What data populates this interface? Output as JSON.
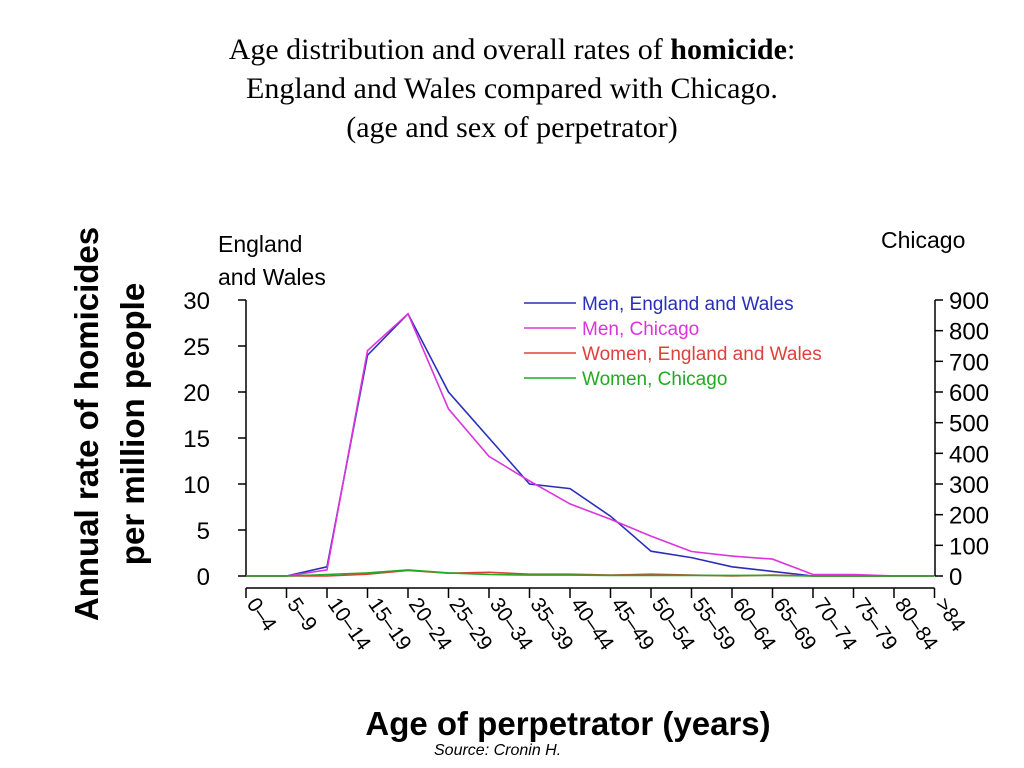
{
  "title": {
    "line1_prefix": "Age distribution and overall rates of ",
    "line1_bold": "homicide",
    "line1_suffix": ":",
    "line2": "England and Wales compared with Chicago.",
    "line3": "(age and sex of perpetrator)"
  },
  "source": "Source: Cronin H.",
  "chart_data": {
    "type": "line",
    "xlabel": "Age of perpetrator (years)",
    "ylabel_line1": "Annual rate of homicides",
    "ylabel_line2": "per million people",
    "left_axis_title_line1": "England",
    "left_axis_title_line2": "and Wales",
    "right_axis_title": "Chicago",
    "categories": [
      "0–4",
      "5–9",
      "10–14",
      "15–19",
      "20–24",
      "25–29",
      "30–34",
      "35–39",
      "40–44",
      "45–49",
      "50–54",
      "55–59",
      "60–64",
      "65–69",
      "70–74",
      "75–79",
      "80–84",
      ">84"
    ],
    "left_axis": {
      "min": 0,
      "max": 30,
      "ticks": [
        0,
        5,
        10,
        15,
        20,
        25,
        30
      ]
    },
    "right_axis": {
      "min": 0,
      "max": 900,
      "ticks": [
        0,
        100,
        200,
        300,
        400,
        500,
        600,
        700,
        800,
        900
      ]
    },
    "legend_position": "top-right",
    "series": [
      {
        "name": "Men, England and Wales",
        "axis": "left",
        "color": "#2a2fb8",
        "values": [
          0,
          0,
          1,
          24,
          28.5,
          20,
          15,
          10,
          9.5,
          6.5,
          2.7,
          2,
          1,
          0.5,
          0,
          0,
          0,
          0
        ]
      },
      {
        "name": "Men, Chicago",
        "axis": "right",
        "color": "#dd33dd",
        "values": [
          0,
          0,
          20,
          735,
          855,
          545,
          390,
          310,
          235,
          185,
          130,
          80,
          65,
          55,
          5,
          5,
          0,
          0
        ]
      },
      {
        "name": "Women, England and Wales",
        "axis": "left",
        "color": "#e0403a",
        "values": [
          0,
          0,
          0,
          0.2,
          0.6,
          0.3,
          0.4,
          0.2,
          0.2,
          0.1,
          0.2,
          0.1,
          0,
          0.1,
          0,
          0,
          0,
          0
        ]
      },
      {
        "name": "Women, Chicago",
        "axis": "right",
        "color": "#22aa22",
        "values": [
          0,
          0,
          5,
          10,
          20,
          10,
          5,
          3,
          3,
          2,
          2,
          2,
          2,
          2,
          0,
          0,
          0,
          0
        ]
      }
    ]
  }
}
